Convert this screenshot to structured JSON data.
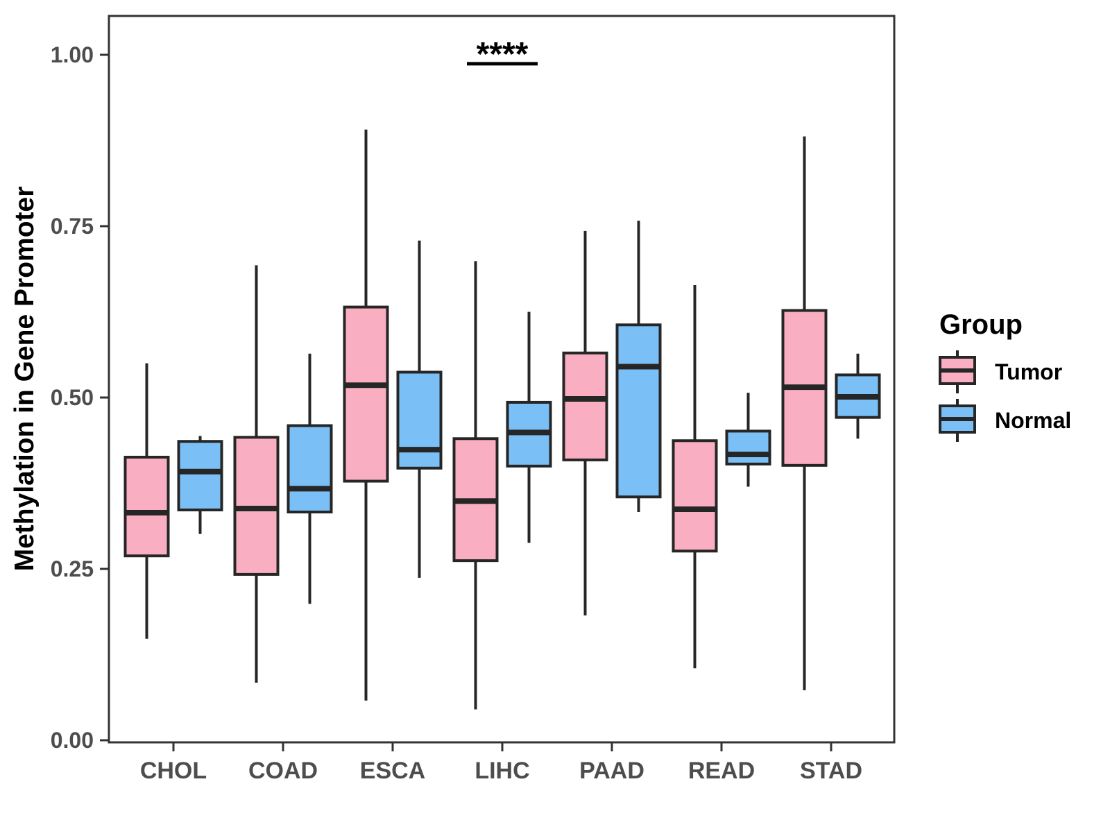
{
  "figure": {
    "background": "#ffffff",
    "legend": {
      "title": "Group",
      "items": [
        {
          "label": "Tumor",
          "color": "#FAAEC1"
        },
        {
          "label": "Normal",
          "color": "#7AC0F7"
        }
      ]
    }
  },
  "chart_data": {
    "type": "boxplot",
    "title": "",
    "xlabel": "",
    "ylabel": "Methylation in Gene Promoter",
    "ylim": [
      0,
      1.06
    ],
    "yticks": [
      0.0,
      0.25,
      0.5,
      0.75,
      1.0
    ],
    "ytick_labels": [
      "0.00",
      "0.25",
      "0.50",
      "0.75",
      "1.00"
    ],
    "categories": [
      "CHOL",
      "COAD",
      "ESCA",
      "LIHC",
      "PAAD",
      "READ",
      "STAD"
    ],
    "grid": false,
    "legend_position": "right",
    "annotation": {
      "text": "****",
      "category": "LIHC",
      "bar_y": 0.987
    },
    "series": [
      {
        "name": "Tumor",
        "color": "#FAAEC1",
        "boxes": [
          {
            "min": 0.148,
            "q1": 0.269,
            "median": 0.332,
            "q3": 0.413,
            "max": 0.55
          },
          {
            "min": 0.084,
            "q1": 0.242,
            "median": 0.338,
            "q3": 0.442,
            "max": 0.693
          },
          {
            "min": 0.058,
            "q1": 0.378,
            "median": 0.518,
            "q3": 0.632,
            "max": 0.891
          },
          {
            "min": 0.045,
            "q1": 0.262,
            "median": 0.349,
            "q3": 0.44,
            "max": 0.699
          },
          {
            "min": 0.182,
            "q1": 0.409,
            "median": 0.498,
            "q3": 0.565,
            "max": 0.743
          },
          {
            "min": 0.105,
            "q1": 0.276,
            "median": 0.337,
            "q3": 0.437,
            "max": 0.664
          },
          {
            "min": 0.073,
            "q1": 0.401,
            "median": 0.515,
            "q3": 0.627,
            "max": 0.881
          }
        ]
      },
      {
        "name": "Normal",
        "color": "#7AC0F7",
        "boxes": [
          {
            "min": 0.301,
            "q1": 0.336,
            "median": 0.392,
            "q3": 0.436,
            "max": 0.444
          },
          {
            "min": 0.199,
            "q1": 0.333,
            "median": 0.367,
            "q3": 0.459,
            "max": 0.564
          },
          {
            "min": 0.237,
            "q1": 0.397,
            "median": 0.424,
            "q3": 0.537,
            "max": 0.729
          },
          {
            "min": 0.288,
            "q1": 0.4,
            "median": 0.449,
            "q3": 0.493,
            "max": 0.625
          },
          {
            "min": 0.333,
            "q1": 0.355,
            "median": 0.545,
            "q3": 0.606,
            "max": 0.758
          },
          {
            "min": 0.37,
            "q1": 0.403,
            "median": 0.417,
            "q3": 0.451,
            "max": 0.507
          },
          {
            "min": 0.44,
            "q1": 0.471,
            "median": 0.501,
            "q3": 0.533,
            "max": 0.564
          }
        ]
      }
    ]
  }
}
